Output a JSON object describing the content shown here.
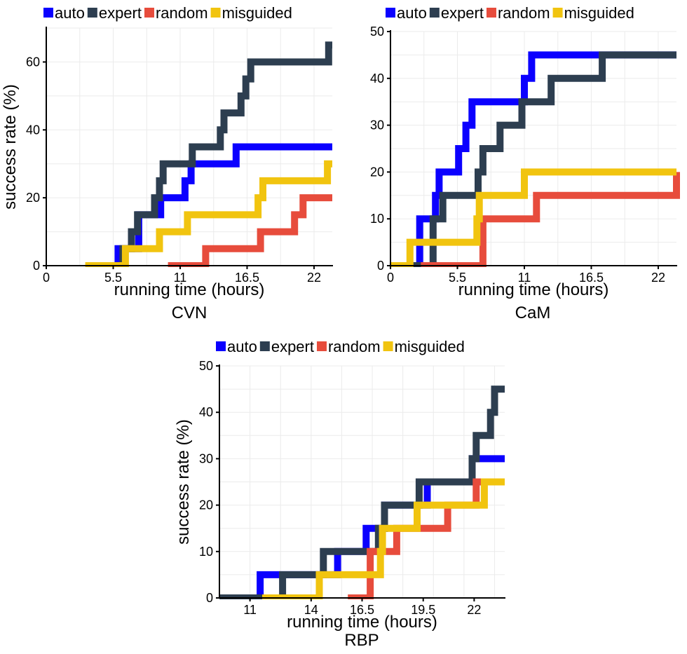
{
  "chart_data": [
    {
      "type": "line",
      "title": "CVN",
      "xlabel": "running time (hours)",
      "ylabel": "success rate (%)",
      "xlim": [
        0,
        23.5
      ],
      "ylim": [
        0,
        70
      ],
      "xticks": [
        0,
        5.5,
        11,
        16.5,
        22
      ],
      "xtick_labels": [
        "0",
        "5.5",
        "11",
        "16.5",
        "22"
      ],
      "yticks": [
        0,
        20,
        40,
        60
      ],
      "legend": [
        "auto",
        "expert",
        "random",
        "misguided"
      ],
      "legend_position": "top",
      "grid": true,
      "series": [
        {
          "name": "auto",
          "color": "#0b00ff",
          "points": [
            [
              5.9,
              0
            ],
            [
              5.9,
              5
            ],
            [
              7.6,
              5
            ],
            [
              7.6,
              15
            ],
            [
              9.4,
              15
            ],
            [
              9.4,
              20
            ],
            [
              11.4,
              20
            ],
            [
              11.4,
              25
            ],
            [
              11.9,
              25
            ],
            [
              11.9,
              30
            ],
            [
              15.6,
              30
            ],
            [
              15.6,
              35
            ],
            [
              23.5,
              35
            ]
          ]
        },
        {
          "name": "expert",
          "color": "#2d3e50",
          "points": [
            [
              6.3,
              0
            ],
            [
              6.3,
              5
            ],
            [
              7.0,
              5
            ],
            [
              7.0,
              10
            ],
            [
              7.5,
              10
            ],
            [
              7.5,
              15
            ],
            [
              8.9,
              15
            ],
            [
              8.9,
              20
            ],
            [
              9.3,
              20
            ],
            [
              9.3,
              25
            ],
            [
              9.6,
              25
            ],
            [
              9.6,
              30
            ],
            [
              12.0,
              30
            ],
            [
              12.0,
              35
            ],
            [
              14.3,
              35
            ],
            [
              14.3,
              40
            ],
            [
              14.6,
              40
            ],
            [
              14.6,
              45
            ],
            [
              16.0,
              45
            ],
            [
              16.0,
              50
            ],
            [
              16.4,
              50
            ],
            [
              16.4,
              55
            ],
            [
              16.8,
              55
            ],
            [
              16.8,
              60
            ],
            [
              23.2,
              60
            ],
            [
              23.2,
              65
            ],
            [
              23.5,
              65
            ]
          ]
        },
        {
          "name": "random",
          "color": "#e74c3c",
          "points": [
            [
              10.0,
              0
            ],
            [
              13.1,
              0
            ],
            [
              13.1,
              5
            ],
            [
              17.6,
              5
            ],
            [
              17.6,
              10
            ],
            [
              20.4,
              10
            ],
            [
              20.4,
              15
            ],
            [
              21.1,
              15
            ],
            [
              21.1,
              20
            ],
            [
              23.5,
              20
            ]
          ]
        },
        {
          "name": "misguided",
          "color": "#f1c40f",
          "points": [
            [
              3.2,
              0
            ],
            [
              6.5,
              0
            ],
            [
              6.5,
              5
            ],
            [
              9.3,
              5
            ],
            [
              9.3,
              10
            ],
            [
              11.6,
              10
            ],
            [
              11.6,
              15
            ],
            [
              17.4,
              15
            ],
            [
              17.4,
              20
            ],
            [
              17.8,
              20
            ],
            [
              17.8,
              25
            ],
            [
              23.1,
              25
            ],
            [
              23.1,
              30
            ],
            [
              23.5,
              30
            ]
          ]
        }
      ]
    },
    {
      "type": "line",
      "title": "CaM",
      "xlabel": "running time (hours)",
      "ylabel": "",
      "xlim": [
        0,
        23.5
      ],
      "ylim": [
        0,
        50
      ],
      "xticks": [
        0,
        5.5,
        11,
        16.5,
        22
      ],
      "xtick_labels": [
        "0",
        "5.5",
        "11",
        "16.5",
        "22"
      ],
      "yticks": [
        0,
        10,
        20,
        30,
        40,
        50
      ],
      "legend": [
        "auto",
        "expert",
        "random",
        "misguided"
      ],
      "legend_position": "top",
      "grid": true,
      "series": [
        {
          "name": "auto",
          "color": "#0b00ff",
          "points": [
            [
              0,
              0
            ],
            [
              2.4,
              0
            ],
            [
              2.4,
              10
            ],
            [
              3.7,
              10
            ],
            [
              3.7,
              15
            ],
            [
              4.0,
              15
            ],
            [
              4.0,
              20
            ],
            [
              5.6,
              20
            ],
            [
              5.6,
              25
            ],
            [
              6.2,
              25
            ],
            [
              6.2,
              30
            ],
            [
              6.7,
              30
            ],
            [
              6.7,
              35
            ],
            [
              11.0,
              35
            ],
            [
              11.0,
              40
            ],
            [
              11.6,
              40
            ],
            [
              11.6,
              45
            ],
            [
              23.5,
              45
            ]
          ]
        },
        {
          "name": "expert",
          "color": "#2d3e50",
          "points": [
            [
              0,
              0
            ],
            [
              3.5,
              0
            ],
            [
              3.5,
              10
            ],
            [
              4.3,
              10
            ],
            [
              4.3,
              15
            ],
            [
              7.2,
              15
            ],
            [
              7.2,
              20
            ],
            [
              7.6,
              20
            ],
            [
              7.6,
              25
            ],
            [
              9.0,
              25
            ],
            [
              9.0,
              30
            ],
            [
              10.8,
              30
            ],
            [
              10.8,
              35
            ],
            [
              13.2,
              35
            ],
            [
              13.2,
              40
            ],
            [
              17.4,
              40
            ],
            [
              17.4,
              45
            ],
            [
              23.5,
              45
            ]
          ]
        },
        {
          "name": "random",
          "color": "#e74c3c",
          "points": [
            [
              2.5,
              0
            ],
            [
              7.6,
              0
            ],
            [
              7.6,
              10
            ],
            [
              12.0,
              10
            ],
            [
              12.0,
              15
            ],
            [
              23.5,
              15
            ],
            [
              23.5,
              20
            ]
          ]
        },
        {
          "name": "misguided",
          "color": "#f1c40f",
          "points": [
            [
              0,
              0
            ],
            [
              1.6,
              0
            ],
            [
              1.6,
              5
            ],
            [
              7.1,
              5
            ],
            [
              7.1,
              10
            ],
            [
              7.3,
              10
            ],
            [
              7.3,
              15
            ],
            [
              11.0,
              15
            ],
            [
              11.0,
              20
            ],
            [
              23.5,
              20
            ]
          ]
        }
      ]
    },
    {
      "type": "line",
      "title": "RBP",
      "xlabel": "running time (hours)",
      "ylabel": "success rate (%)",
      "xlim": [
        9.5,
        23.5
      ],
      "ylim": [
        0,
        50
      ],
      "xticks": [
        11,
        14,
        16.5,
        19.5,
        22
      ],
      "xtick_labels": [
        "11",
        "14",
        "16.5",
        "19.5",
        "22"
      ],
      "yticks": [
        0,
        10,
        20,
        30,
        40,
        50
      ],
      "legend": [
        "auto",
        "expert",
        "random",
        "misguided"
      ],
      "legend_position": "top",
      "grid": true,
      "series": [
        {
          "name": "auto",
          "color": "#0b00ff",
          "points": [
            [
              9.5,
              0
            ],
            [
              11.5,
              0
            ],
            [
              11.5,
              5
            ],
            [
              15.3,
              5
            ],
            [
              15.3,
              10
            ],
            [
              16.7,
              10
            ],
            [
              16.7,
              15
            ],
            [
              17.6,
              15
            ],
            [
              17.6,
              20
            ],
            [
              19.7,
              20
            ],
            [
              19.7,
              25
            ],
            [
              21.9,
              25
            ],
            [
              21.9,
              30
            ],
            [
              23.5,
              30
            ]
          ]
        },
        {
          "name": "expert",
          "color": "#2d3e50",
          "points": [
            [
              9.5,
              0
            ],
            [
              12.6,
              0
            ],
            [
              12.6,
              5
            ],
            [
              14.6,
              5
            ],
            [
              14.6,
              10
            ],
            [
              17.3,
              10
            ],
            [
              17.3,
              15
            ],
            [
              17.6,
              15
            ],
            [
              17.6,
              20
            ],
            [
              19.3,
              20
            ],
            [
              19.3,
              25
            ],
            [
              21.9,
              25
            ],
            [
              21.9,
              30
            ],
            [
              22.1,
              30
            ],
            [
              22.1,
              35
            ],
            [
              22.8,
              35
            ],
            [
              22.8,
              40
            ],
            [
              23.0,
              40
            ],
            [
              23.0,
              45
            ],
            [
              23.5,
              45
            ]
          ]
        },
        {
          "name": "random",
          "color": "#e74c3c",
          "points": [
            [
              15.8,
              0
            ],
            [
              16.9,
              0
            ],
            [
              16.9,
              10
            ],
            [
              18.2,
              10
            ],
            [
              18.2,
              15
            ],
            [
              20.7,
              15
            ],
            [
              20.7,
              20
            ],
            [
              22.1,
              20
            ],
            [
              22.1,
              25
            ],
            [
              23.5,
              25
            ]
          ]
        },
        {
          "name": "misguided",
          "color": "#f1c40f",
          "points": [
            [
              11.6,
              0
            ],
            [
              14.4,
              0
            ],
            [
              14.4,
              5
            ],
            [
              17.4,
              5
            ],
            [
              17.4,
              10
            ],
            [
              17.5,
              10
            ],
            [
              17.5,
              15
            ],
            [
              19.2,
              15
            ],
            [
              19.2,
              20
            ],
            [
              22.5,
              20
            ],
            [
              22.5,
              25
            ],
            [
              23.5,
              25
            ]
          ]
        }
      ]
    }
  ]
}
